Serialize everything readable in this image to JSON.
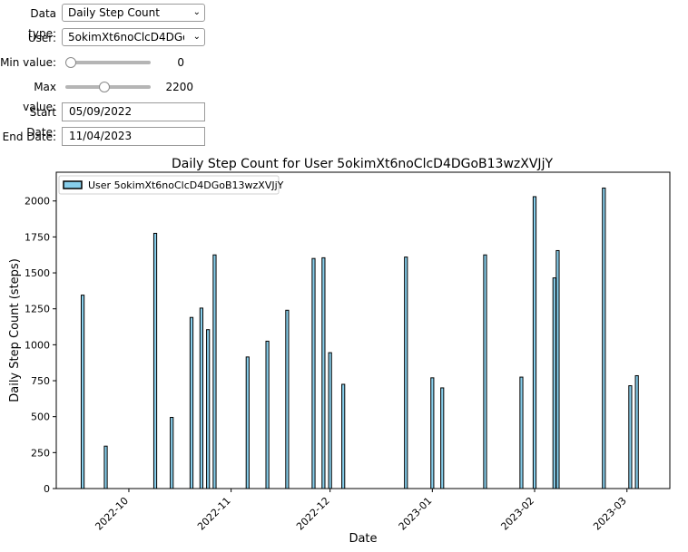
{
  "controls": {
    "data_type": {
      "label": "Data type:",
      "value": "Daily Step Count"
    },
    "user": {
      "label": "User:",
      "value": "5okimXt6noClcD4DGoB13wzXVJjY"
    },
    "min_value": {
      "label": "Min value:",
      "value": "0",
      "level": 0.0
    },
    "max_value": {
      "label": "Max value:",
      "value": "2200",
      "level": 0.45
    },
    "start_date": {
      "label": "Start Date:",
      "value": "05/09/2022"
    },
    "end_date": {
      "label": "End Date:",
      "value": "11/04/2023"
    }
  },
  "chart_data": {
    "type": "bar",
    "title": "Daily Step Count for User 5okimXt6noClcD4DGoB13wzXVJjY",
    "xlabel": "Date",
    "ylabel": "Daily Step Count (steps)",
    "legend": {
      "label": "User 5okimXt6noClcD4DGoB13wzXVJjY",
      "placement": "top-left"
    },
    "bar_color": "#87ceeb",
    "edge_color": "#000000",
    "xlim": [
      "2022-09-09",
      "2023-03-14"
    ],
    "ylim": [
      0,
      2200
    ],
    "yticks": [
      0,
      250,
      500,
      750,
      1000,
      1250,
      1500,
      1750,
      2000
    ],
    "xticks": [
      {
        "date": "2022-10-01",
        "label": "2022-10"
      },
      {
        "date": "2022-11-01",
        "label": "2022-11"
      },
      {
        "date": "2022-12-01",
        "label": "2022-12"
      },
      {
        "date": "2023-01-01",
        "label": "2023-01"
      },
      {
        "date": "2023-02-01",
        "label": "2023-02"
      },
      {
        "date": "2023-03-01",
        "label": "2023-03"
      }
    ],
    "points": [
      {
        "date": "2022-09-17",
        "value": 1345
      },
      {
        "date": "2022-09-24",
        "value": 295
      },
      {
        "date": "2022-10-09",
        "value": 1775
      },
      {
        "date": "2022-10-14",
        "value": 495
      },
      {
        "date": "2022-10-20",
        "value": 1190
      },
      {
        "date": "2022-10-23",
        "value": 1255
      },
      {
        "date": "2022-10-25",
        "value": 1105
      },
      {
        "date": "2022-10-27",
        "value": 1625
      },
      {
        "date": "2022-11-06",
        "value": 915
      },
      {
        "date": "2022-11-12",
        "value": 1025
      },
      {
        "date": "2022-11-18",
        "value": 1240
      },
      {
        "date": "2022-11-26",
        "value": 1600
      },
      {
        "date": "2022-11-29",
        "value": 1605
      },
      {
        "date": "2022-12-01",
        "value": 945
      },
      {
        "date": "2022-12-05",
        "value": 725
      },
      {
        "date": "2022-12-24",
        "value": 1610
      },
      {
        "date": "2023-01-01",
        "value": 770
      },
      {
        "date": "2023-01-04",
        "value": 700
      },
      {
        "date": "2023-01-17",
        "value": 1625
      },
      {
        "date": "2023-01-28",
        "value": 775
      },
      {
        "date": "2023-02-01",
        "value": 2030
      },
      {
        "date": "2023-02-07",
        "value": 1465
      },
      {
        "date": "2023-02-08",
        "value": 1655
      },
      {
        "date": "2023-02-22",
        "value": 2090
      },
      {
        "date": "2023-03-02",
        "value": 715
      },
      {
        "date": "2023-03-04",
        "value": 785
      }
    ]
  }
}
